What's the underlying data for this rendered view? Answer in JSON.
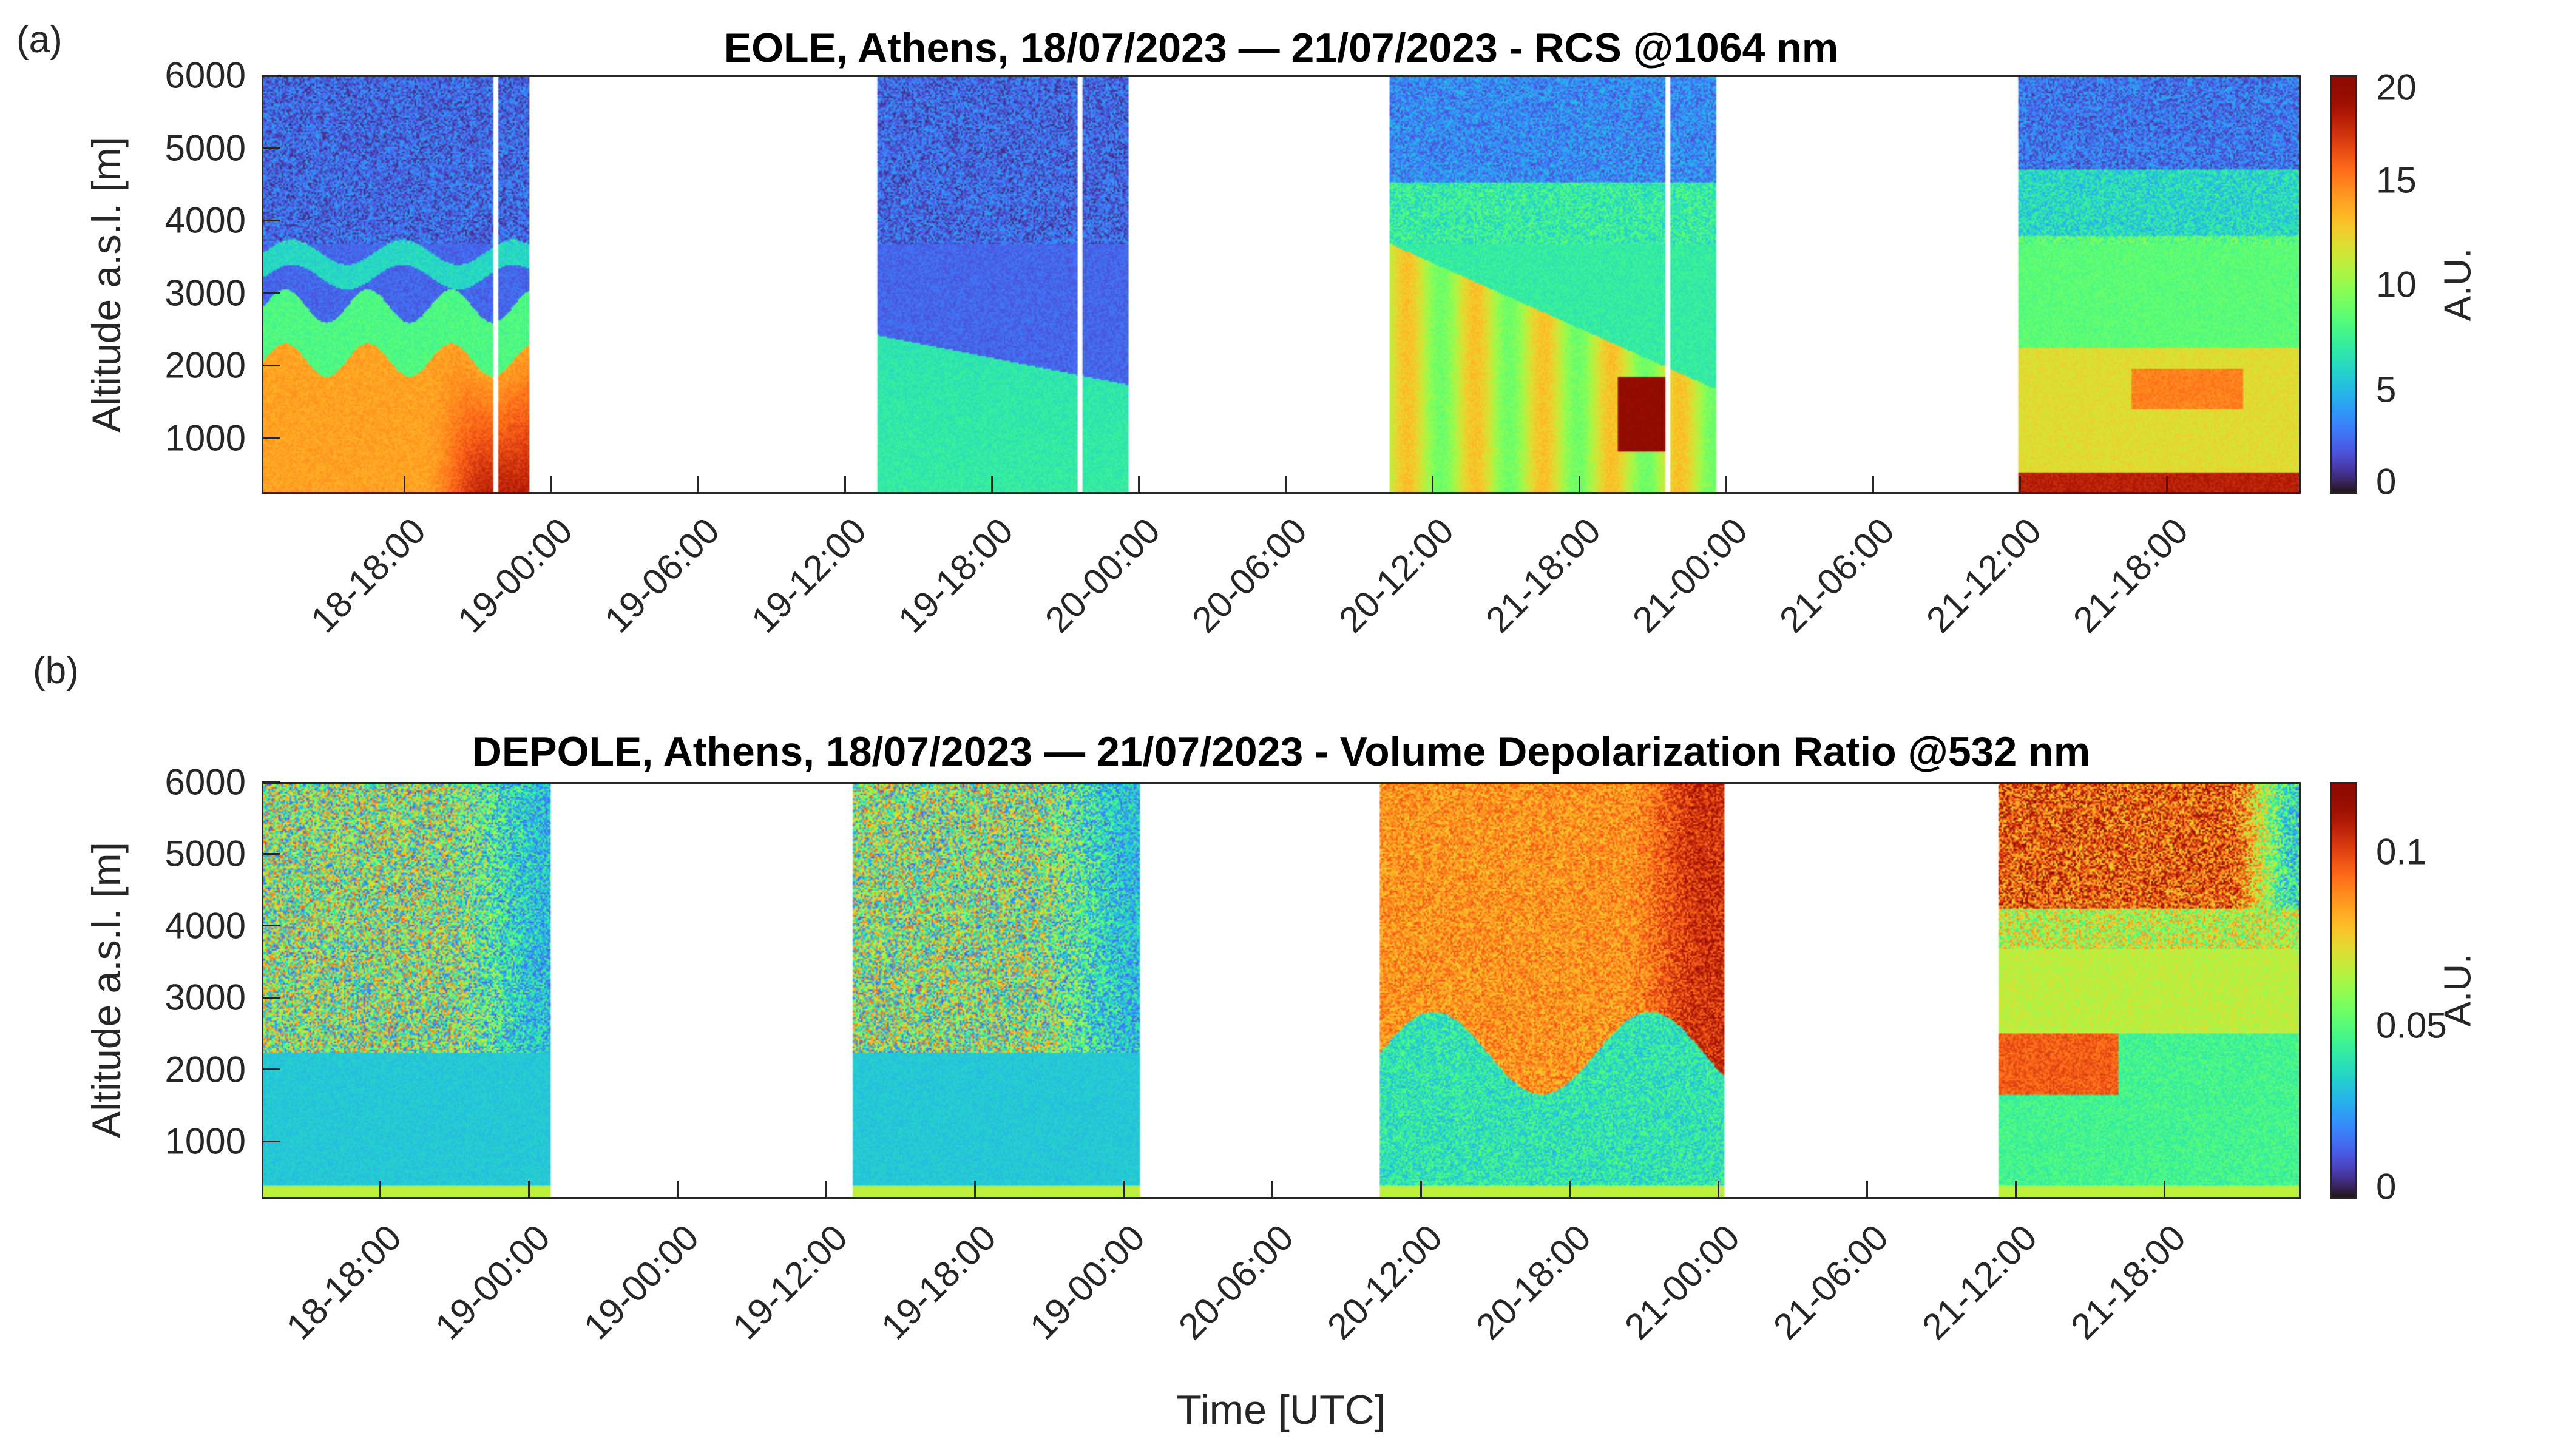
{
  "chart_data": [
    {
      "type": "heatmap",
      "panel_label": "(a)",
      "title": "EOLE, Athens, 18/07/2023 — 21/07/2023 - RCS @1064 nm",
      "ylabel": "Altitude a.s.l. [m]",
      "xlabel": "",
      "ylim": [
        230,
        6000
      ],
      "yticks": [
        "1000",
        "2000",
        "3000",
        "4000",
        "5000",
        "6000"
      ],
      "xticks": [
        "18-18:00",
        "19-00:00",
        "19-06:00",
        "19-12:00",
        "19-18:00",
        "20-00:00",
        "20-06:00",
        "20-12:00",
        "21-18:00",
        "21-00:00",
        "21-06:00",
        "21-12:00",
        "21-18:00"
      ],
      "colorbar": {
        "label": "A.U.",
        "range": [
          0,
          20
        ],
        "ticks": [
          "0",
          "5",
          "10",
          "15",
          "20"
        ],
        "colormap": "turbo"
      }
    },
    {
      "type": "heatmap",
      "panel_label": "(b)",
      "title": "DEPOLE, Athens, 18/07/2023 — 21/07/2023 - Volume Depolarization Ratio @532 nm",
      "ylabel": "Altitude a.s.l. [m]",
      "xlabel": "Time [UTC]",
      "ylim": [
        200,
        6000
      ],
      "yticks": [
        "1000",
        "2000",
        "3000",
        "4000",
        "5000",
        "6000"
      ],
      "xticks": [
        "18-18:00",
        "19-00:00",
        "19-00:00",
        "19-12:00",
        "19-18:00",
        "19-00:00",
        "20-06:00",
        "20-12:00",
        "20-18:00",
        "21-00:00",
        "21-06:00",
        "21-12:00",
        "21-18:00"
      ],
      "colorbar": {
        "label": "A.U.",
        "range": [
          0,
          0.12
        ],
        "ticks": [
          "0",
          "0.05",
          "0.1"
        ],
        "colormap": "turbo"
      }
    }
  ]
}
